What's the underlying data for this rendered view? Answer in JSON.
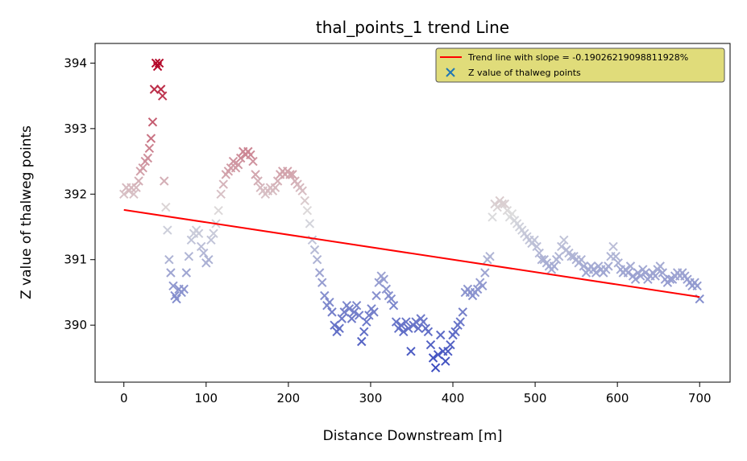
{
  "chart_data": {
    "type": "scatter",
    "title": "thal_points_1 trend Line",
    "xlabel": "Distance Downstream [m]",
    "ylabel": "Z value of thalweg points",
    "xlim": [
      -35,
      737
    ],
    "ylim": [
      389.13,
      394.3
    ],
    "xticks": [
      0,
      100,
      200,
      300,
      400,
      500,
      600,
      700
    ],
    "yticks": [
      390,
      391,
      392,
      393,
      394
    ],
    "grid": false,
    "legend_position": "top-right",
    "legend_bg": "#e0dc7a",
    "legend_entries": [
      {
        "label": "Trend line with slope = -0.19026219098811928%",
        "marker": "line",
        "color": "#ff0000"
      },
      {
        "label": "Z value of thalweg points",
        "marker": "x",
        "color": "#1f77b4"
      }
    ],
    "trend_line": {
      "x": [
        0,
        700
      ],
      "y": [
        391.76,
        390.43
      ],
      "color": "#ff0000"
    },
    "colormap": {
      "name": "coolwarm",
      "vmin": 389.35,
      "vmax": 394.05,
      "low": "#3b4cc0",
      "mid": "#dddddd",
      "high": "#b40426"
    },
    "series": [
      {
        "marker": "x",
        "points": [
          [
            0,
            392.0
          ],
          [
            3,
            392.1
          ],
          [
            6,
            392.05
          ],
          [
            9,
            392.1
          ],
          [
            12,
            392.0
          ],
          [
            15,
            392.1
          ],
          [
            18,
            392.2
          ],
          [
            20,
            392.35
          ],
          [
            23,
            392.4
          ],
          [
            26,
            392.5
          ],
          [
            29,
            392.55
          ],
          [
            31,
            392.7
          ],
          [
            33,
            392.85
          ],
          [
            35,
            393.1
          ],
          [
            37,
            393.6
          ],
          [
            39,
            394.0
          ],
          [
            41,
            393.95
          ],
          [
            43,
            394.0
          ],
          [
            45,
            393.6
          ],
          [
            47,
            393.5
          ],
          [
            49,
            392.2
          ],
          [
            51,
            391.8
          ],
          [
            53,
            391.45
          ],
          [
            55,
            391.0
          ],
          [
            57,
            390.8
          ],
          [
            60,
            390.6
          ],
          [
            62,
            390.45
          ],
          [
            64,
            390.4
          ],
          [
            67,
            390.55
          ],
          [
            70,
            390.5
          ],
          [
            73,
            390.55
          ],
          [
            76,
            390.8
          ],
          [
            79,
            391.05
          ],
          [
            82,
            391.3
          ],
          [
            85,
            391.4
          ],
          [
            88,
            391.45
          ],
          [
            91,
            391.4
          ],
          [
            94,
            391.2
          ],
          [
            97,
            391.1
          ],
          [
            100,
            390.95
          ],
          [
            103,
            391.0
          ],
          [
            106,
            391.3
          ],
          [
            109,
            391.4
          ],
          [
            112,
            391.55
          ],
          [
            115,
            391.75
          ],
          [
            118,
            392.0
          ],
          [
            121,
            392.15
          ],
          [
            124,
            392.3
          ],
          [
            127,
            392.35
          ],
          [
            130,
            392.4
          ],
          [
            133,
            392.5
          ],
          [
            136,
            392.4
          ],
          [
            139,
            392.45
          ],
          [
            142,
            392.55
          ],
          [
            145,
            392.65
          ],
          [
            148,
            392.6
          ],
          [
            151,
            392.65
          ],
          [
            154,
            392.6
          ],
          [
            157,
            392.5
          ],
          [
            160,
            392.3
          ],
          [
            163,
            392.2
          ],
          [
            166,
            392.1
          ],
          [
            169,
            392.05
          ],
          [
            172,
            392.0
          ],
          [
            175,
            392.05
          ],
          [
            178,
            392.1
          ],
          [
            181,
            392.05
          ],
          [
            184,
            392.1
          ],
          [
            187,
            392.2
          ],
          [
            190,
            392.3
          ],
          [
            193,
            392.35
          ],
          [
            196,
            392.3
          ],
          [
            199,
            392.35
          ],
          [
            202,
            392.3
          ],
          [
            205,
            392.3
          ],
          [
            208,
            392.2
          ],
          [
            211,
            392.15
          ],
          [
            214,
            392.1
          ],
          [
            217,
            392.05
          ],
          [
            220,
            391.9
          ],
          [
            223,
            391.75
          ],
          [
            226,
            391.55
          ],
          [
            229,
            391.3
          ],
          [
            232,
            391.15
          ],
          [
            235,
            391.0
          ],
          [
            238,
            390.8
          ],
          [
            241,
            390.65
          ],
          [
            244,
            390.45
          ],
          [
            247,
            390.3
          ],
          [
            250,
            390.35
          ],
          [
            253,
            390.2
          ],
          [
            256,
            390.0
          ],
          [
            259,
            389.9
          ],
          [
            262,
            389.95
          ],
          [
            265,
            390.1
          ],
          [
            268,
            390.2
          ],
          [
            271,
            390.3
          ],
          [
            274,
            390.25
          ],
          [
            277,
            390.1
          ],
          [
            280,
            390.2
          ],
          [
            283,
            390.3
          ],
          [
            286,
            390.15
          ],
          [
            289,
            389.75
          ],
          [
            292,
            389.9
          ],
          [
            295,
            390.05
          ],
          [
            298,
            390.15
          ],
          [
            301,
            390.25
          ],
          [
            304,
            390.2
          ],
          [
            307,
            390.45
          ],
          [
            310,
            390.65
          ],
          [
            313,
            390.75
          ],
          [
            316,
            390.7
          ],
          [
            319,
            390.55
          ],
          [
            322,
            390.45
          ],
          [
            325,
            390.4
          ],
          [
            328,
            390.3
          ],
          [
            331,
            390.05
          ],
          [
            334,
            389.95
          ],
          [
            337,
            390.0
          ],
          [
            340,
            389.9
          ],
          [
            343,
            390.05
          ],
          [
            346,
            389.95
          ],
          [
            349,
            389.6
          ],
          [
            352,
            390.0
          ],
          [
            355,
            390.05
          ],
          [
            358,
            389.95
          ],
          [
            361,
            390.1
          ],
          [
            364,
            390.05
          ],
          [
            367,
            389.95
          ],
          [
            370,
            389.9
          ],
          [
            373,
            389.7
          ],
          [
            376,
            389.5
          ],
          [
            379,
            389.35
          ],
          [
            382,
            389.55
          ],
          [
            385,
            389.85
          ],
          [
            388,
            389.6
          ],
          [
            391,
            389.45
          ],
          [
            394,
            389.6
          ],
          [
            397,
            389.7
          ],
          [
            400,
            389.85
          ],
          [
            403,
            389.9
          ],
          [
            406,
            390.0
          ],
          [
            409,
            390.05
          ],
          [
            412,
            390.2
          ],
          [
            415,
            390.5
          ],
          [
            418,
            390.55
          ],
          [
            421,
            390.5
          ],
          [
            424,
            390.45
          ],
          [
            427,
            390.5
          ],
          [
            430,
            390.55
          ],
          [
            433,
            390.65
          ],
          [
            436,
            390.6
          ],
          [
            439,
            390.8
          ],
          [
            442,
            391.0
          ],
          [
            445,
            391.05
          ],
          [
            448,
            391.65
          ],
          [
            451,
            391.85
          ],
          [
            454,
            391.8
          ],
          [
            457,
            391.9
          ],
          [
            460,
            391.85
          ],
          [
            463,
            391.85
          ],
          [
            466,
            391.75
          ],
          [
            469,
            391.65
          ],
          [
            472,
            391.7
          ],
          [
            475,
            391.6
          ],
          [
            478,
            391.55
          ],
          [
            481,
            391.5
          ],
          [
            484,
            391.45
          ],
          [
            487,
            391.4
          ],
          [
            490,
            391.35
          ],
          [
            493,
            391.3
          ],
          [
            496,
            391.25
          ],
          [
            499,
            391.3
          ],
          [
            502,
            391.2
          ],
          [
            505,
            391.1
          ],
          [
            508,
            391.0
          ],
          [
            511,
            391.0
          ],
          [
            514,
            390.95
          ],
          [
            517,
            390.9
          ],
          [
            520,
            390.85
          ],
          [
            523,
            390.9
          ],
          [
            526,
            391.0
          ],
          [
            529,
            391.05
          ],
          [
            532,
            391.2
          ],
          [
            535,
            391.3
          ],
          [
            538,
            391.15
          ],
          [
            541,
            391.1
          ],
          [
            544,
            391.05
          ],
          [
            547,
            391.05
          ],
          [
            550,
            391.0
          ],
          [
            553,
            390.95
          ],
          [
            556,
            391.0
          ],
          [
            559,
            390.9
          ],
          [
            562,
            390.8
          ],
          [
            565,
            390.85
          ],
          [
            568,
            390.9
          ],
          [
            571,
            390.85
          ],
          [
            574,
            390.8
          ],
          [
            577,
            390.9
          ],
          [
            580,
            390.85
          ],
          [
            583,
            390.8
          ],
          [
            586,
            390.85
          ],
          [
            589,
            390.9
          ],
          [
            592,
            391.05
          ],
          [
            595,
            391.2
          ],
          [
            598,
            391.05
          ],
          [
            601,
            390.95
          ],
          [
            604,
            390.85
          ],
          [
            607,
            390.8
          ],
          [
            610,
            390.85
          ],
          [
            613,
            390.8
          ],
          [
            616,
            390.9
          ],
          [
            619,
            390.75
          ],
          [
            622,
            390.7
          ],
          [
            625,
            390.8
          ],
          [
            628,
            390.75
          ],
          [
            631,
            390.85
          ],
          [
            634,
            390.8
          ],
          [
            637,
            390.7
          ],
          [
            640,
            390.75
          ],
          [
            643,
            390.8
          ],
          [
            646,
            390.75
          ],
          [
            649,
            390.85
          ],
          [
            652,
            390.9
          ],
          [
            655,
            390.8
          ],
          [
            658,
            390.7
          ],
          [
            661,
            390.65
          ],
          [
            664,
            390.7
          ],
          [
            667,
            390.7
          ],
          [
            670,
            390.75
          ],
          [
            673,
            390.8
          ],
          [
            676,
            390.75
          ],
          [
            679,
            390.8
          ],
          [
            682,
            390.75
          ],
          [
            685,
            390.7
          ],
          [
            688,
            390.65
          ],
          [
            691,
            390.6
          ],
          [
            694,
            390.65
          ],
          [
            697,
            390.6
          ],
          [
            700,
            390.4
          ]
        ]
      }
    ]
  }
}
